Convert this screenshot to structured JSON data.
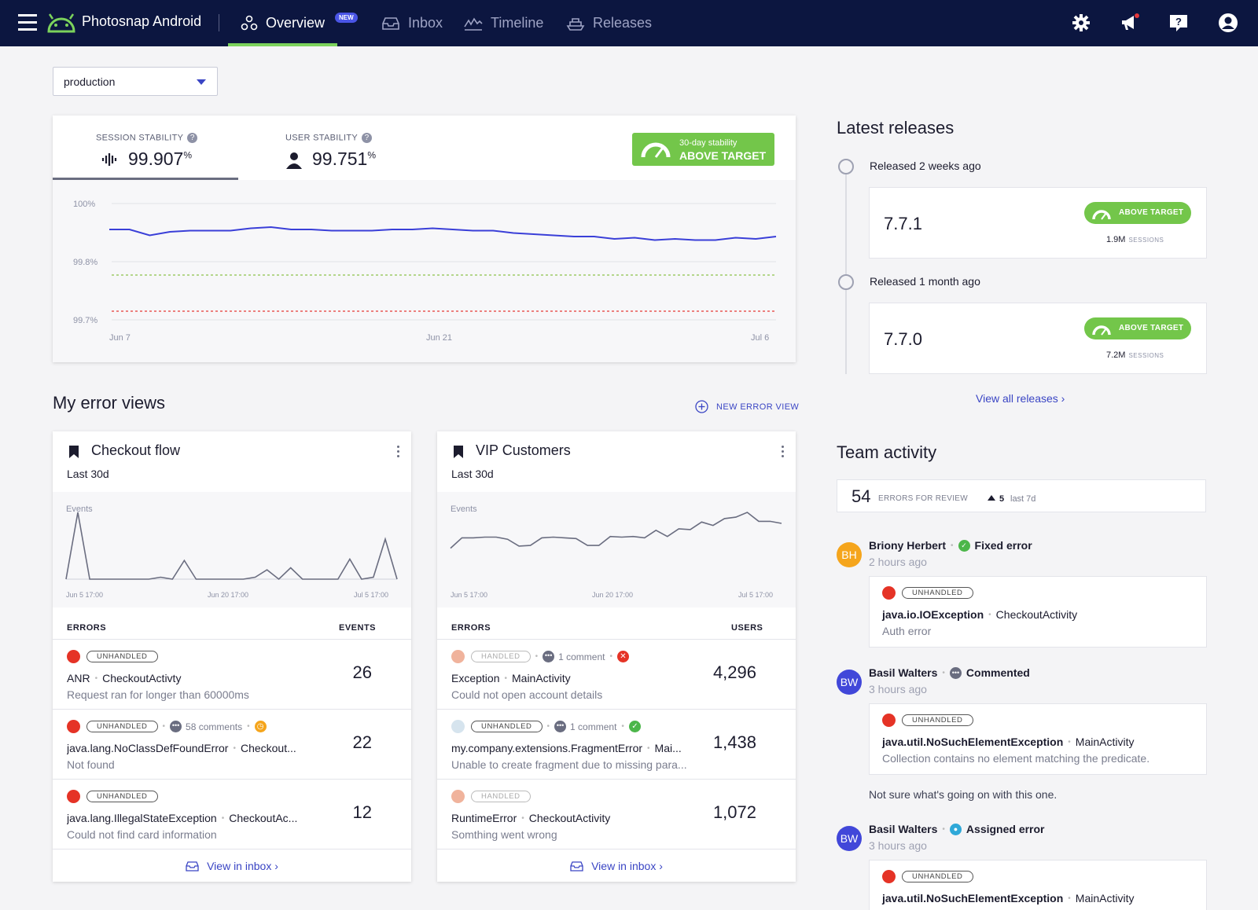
{
  "header": {
    "app_name": "Photosnap Android",
    "tabs": [
      {
        "label": "Overview",
        "badge": "NEW"
      },
      {
        "label": "Inbox"
      },
      {
        "label": "Timeline"
      },
      {
        "label": "Releases"
      }
    ]
  },
  "environment": {
    "selected": "production"
  },
  "stability": {
    "session_label": "SESSION STABILITY",
    "session_value": "99.907",
    "user_label": "USER STABILITY",
    "user_value": "99.751",
    "percent": "%",
    "badge_line1": "30-day stability",
    "badge_line2": "ABOVE TARGET"
  },
  "chart_data": {
    "type": "line",
    "x_ticks": [
      "Jun 7",
      "Jun 21",
      "Jul 6"
    ],
    "y_ticks": [
      "100%",
      "99.8%",
      "99.7%"
    ],
    "series": [
      {
        "values": [
          99.908,
          99.908,
          99.903,
          99.906,
          99.907,
          99.907,
          99.907,
          99.909,
          99.91,
          99.908,
          99.908,
          99.907,
          99.907,
          99.907,
          99.908,
          99.908,
          99.909,
          99.908,
          99.907,
          99.907,
          99.905,
          99.904,
          99.903,
          99.902,
          99.902,
          99.9,
          99.901,
          99.899,
          99.9,
          99.899,
          99.899,
          99.901,
          99.9,
          99.902
        ],
        "color": "#3a3fd8"
      }
    ],
    "target_line": {
      "value": 99.78,
      "color": "#8bc34a"
    },
    "critical_line": {
      "value": 99.72,
      "color": "#e53935"
    }
  },
  "error_views": {
    "title": "My error views",
    "new_button": "NEW ERROR VIEW",
    "cards": [
      {
        "title": "Checkout flow",
        "period": "Last 30d",
        "chart_label": "Events",
        "x_ticks": [
          "Jun 5 17:00",
          "Jun 20 17:00",
          "Jul 5 17:00"
        ],
        "spark": [
          0,
          100,
          0,
          0,
          0,
          0,
          0,
          0,
          3,
          0,
          28,
          0,
          0,
          0,
          0,
          0,
          3,
          14,
          0,
          17,
          0,
          0,
          0,
          0,
          30,
          0,
          3,
          60,
          0
        ],
        "col_left": "ERRORS",
        "col_right": "EVENTS",
        "rows": [
          {
            "status": "UNHANDLED",
            "title": "ANR",
            "context": "CheckoutActivty",
            "subtitle": "Request ran for longer than 60000ms",
            "count": "26",
            "dot": "#e53326",
            "comments": "",
            "icon": ""
          },
          {
            "status": "UNHANDLED",
            "title": "java.lang.NoClassDefFoundError",
            "context": "Checkout...",
            "subtitle": "Not found",
            "count": "22",
            "dot": "#e53326",
            "comments": "58 comments",
            "icon": "clock"
          },
          {
            "status": "UNHANDLED",
            "title": "java.lang.IllegalStateException",
            "context": "CheckoutAc...",
            "subtitle": "Could not find card information",
            "count": "12",
            "dot": "#e53326",
            "comments": "",
            "icon": ""
          }
        ],
        "footer_link": "View in inbox ›"
      },
      {
        "title": "VIP Customers",
        "period": "Last 30d",
        "chart_label": "Events",
        "x_ticks": [
          "Jun 5 17:00",
          "Jun 20 17:00",
          "Jul 5 17:00"
        ],
        "spark": [
          45,
          60,
          60,
          61,
          61,
          58,
          48,
          49,
          60,
          61,
          60,
          59,
          49,
          49,
          62,
          61,
          62,
          60,
          71,
          62,
          73,
          72,
          83,
          78,
          88,
          90,
          97,
          84,
          84,
          81
        ],
        "col_left": "ERRORS",
        "col_right": "USERS",
        "rows": [
          {
            "status": "HANDLED",
            "title": "Exception",
            "context": "MainActivity",
            "subtitle": "Could not open account details",
            "count": "4,296",
            "dot": "#f0b39c",
            "comments": "1 comment",
            "icon": "x"
          },
          {
            "status": "UNHANDLED",
            "title": "my.company.extensions.FragmentError",
            "context": "Mai...",
            "subtitle": "Unable to create fragment due to missing para...",
            "count": "1,438",
            "dot": "#d6e4ee",
            "comments": "1 comment",
            "icon": "check"
          },
          {
            "status": "HANDLED",
            "title": "RuntimeError",
            "context": "CheckoutActivity",
            "subtitle": "Somthing went wrong",
            "count": "1,072",
            "dot": "#f0b39c",
            "comments": "",
            "icon": ""
          }
        ],
        "footer_link": "View in inbox ›"
      }
    ]
  },
  "releases": {
    "title": "Latest releases",
    "items": [
      {
        "when": "Released 2 weeks ago",
        "version": "7.7.1",
        "badge": "ABOVE TARGET",
        "sessions_value": "1.9M",
        "sessions_label": "SESSIONS"
      },
      {
        "when": "Released 1 month ago",
        "version": "7.7.0",
        "badge": "ABOVE TARGET",
        "sessions_value": "7.2M",
        "sessions_label": "SESSIONS"
      }
    ],
    "view_all": "View all releases ›"
  },
  "team": {
    "title": "Team activity",
    "count": "54",
    "count_label": "ERRORS FOR REVIEW",
    "delta": "5",
    "delta_label": "last 7d",
    "activities": [
      {
        "initials": "BH",
        "name": "Briony Herbert",
        "action": "Fixed error",
        "time": "2 hours ago",
        "color": "#f5a51c",
        "status": "UNHANDLED",
        "error": "java.io.IOException",
        "context": "CheckoutActivity",
        "message": "Auth error",
        "note": ""
      },
      {
        "initials": "BW",
        "name": "Basil Walters",
        "action": "Commented",
        "time": "3 hours ago",
        "color": "#4147d9",
        "status": "UNHANDLED",
        "error": "java.util.NoSuchElementException",
        "context": "MainActivity",
        "message": "Collection contains no element matching the predicate.",
        "note": "Not sure what's going on with this one."
      },
      {
        "initials": "BW",
        "name": "Basil Walters",
        "action": "Assigned error",
        "time": "3 hours ago",
        "color": "#4147d9",
        "status": "UNHANDLED",
        "error": "java.util.NoSuchElementException",
        "context": "MainActivity",
        "message": "",
        "note": ""
      }
    ]
  }
}
